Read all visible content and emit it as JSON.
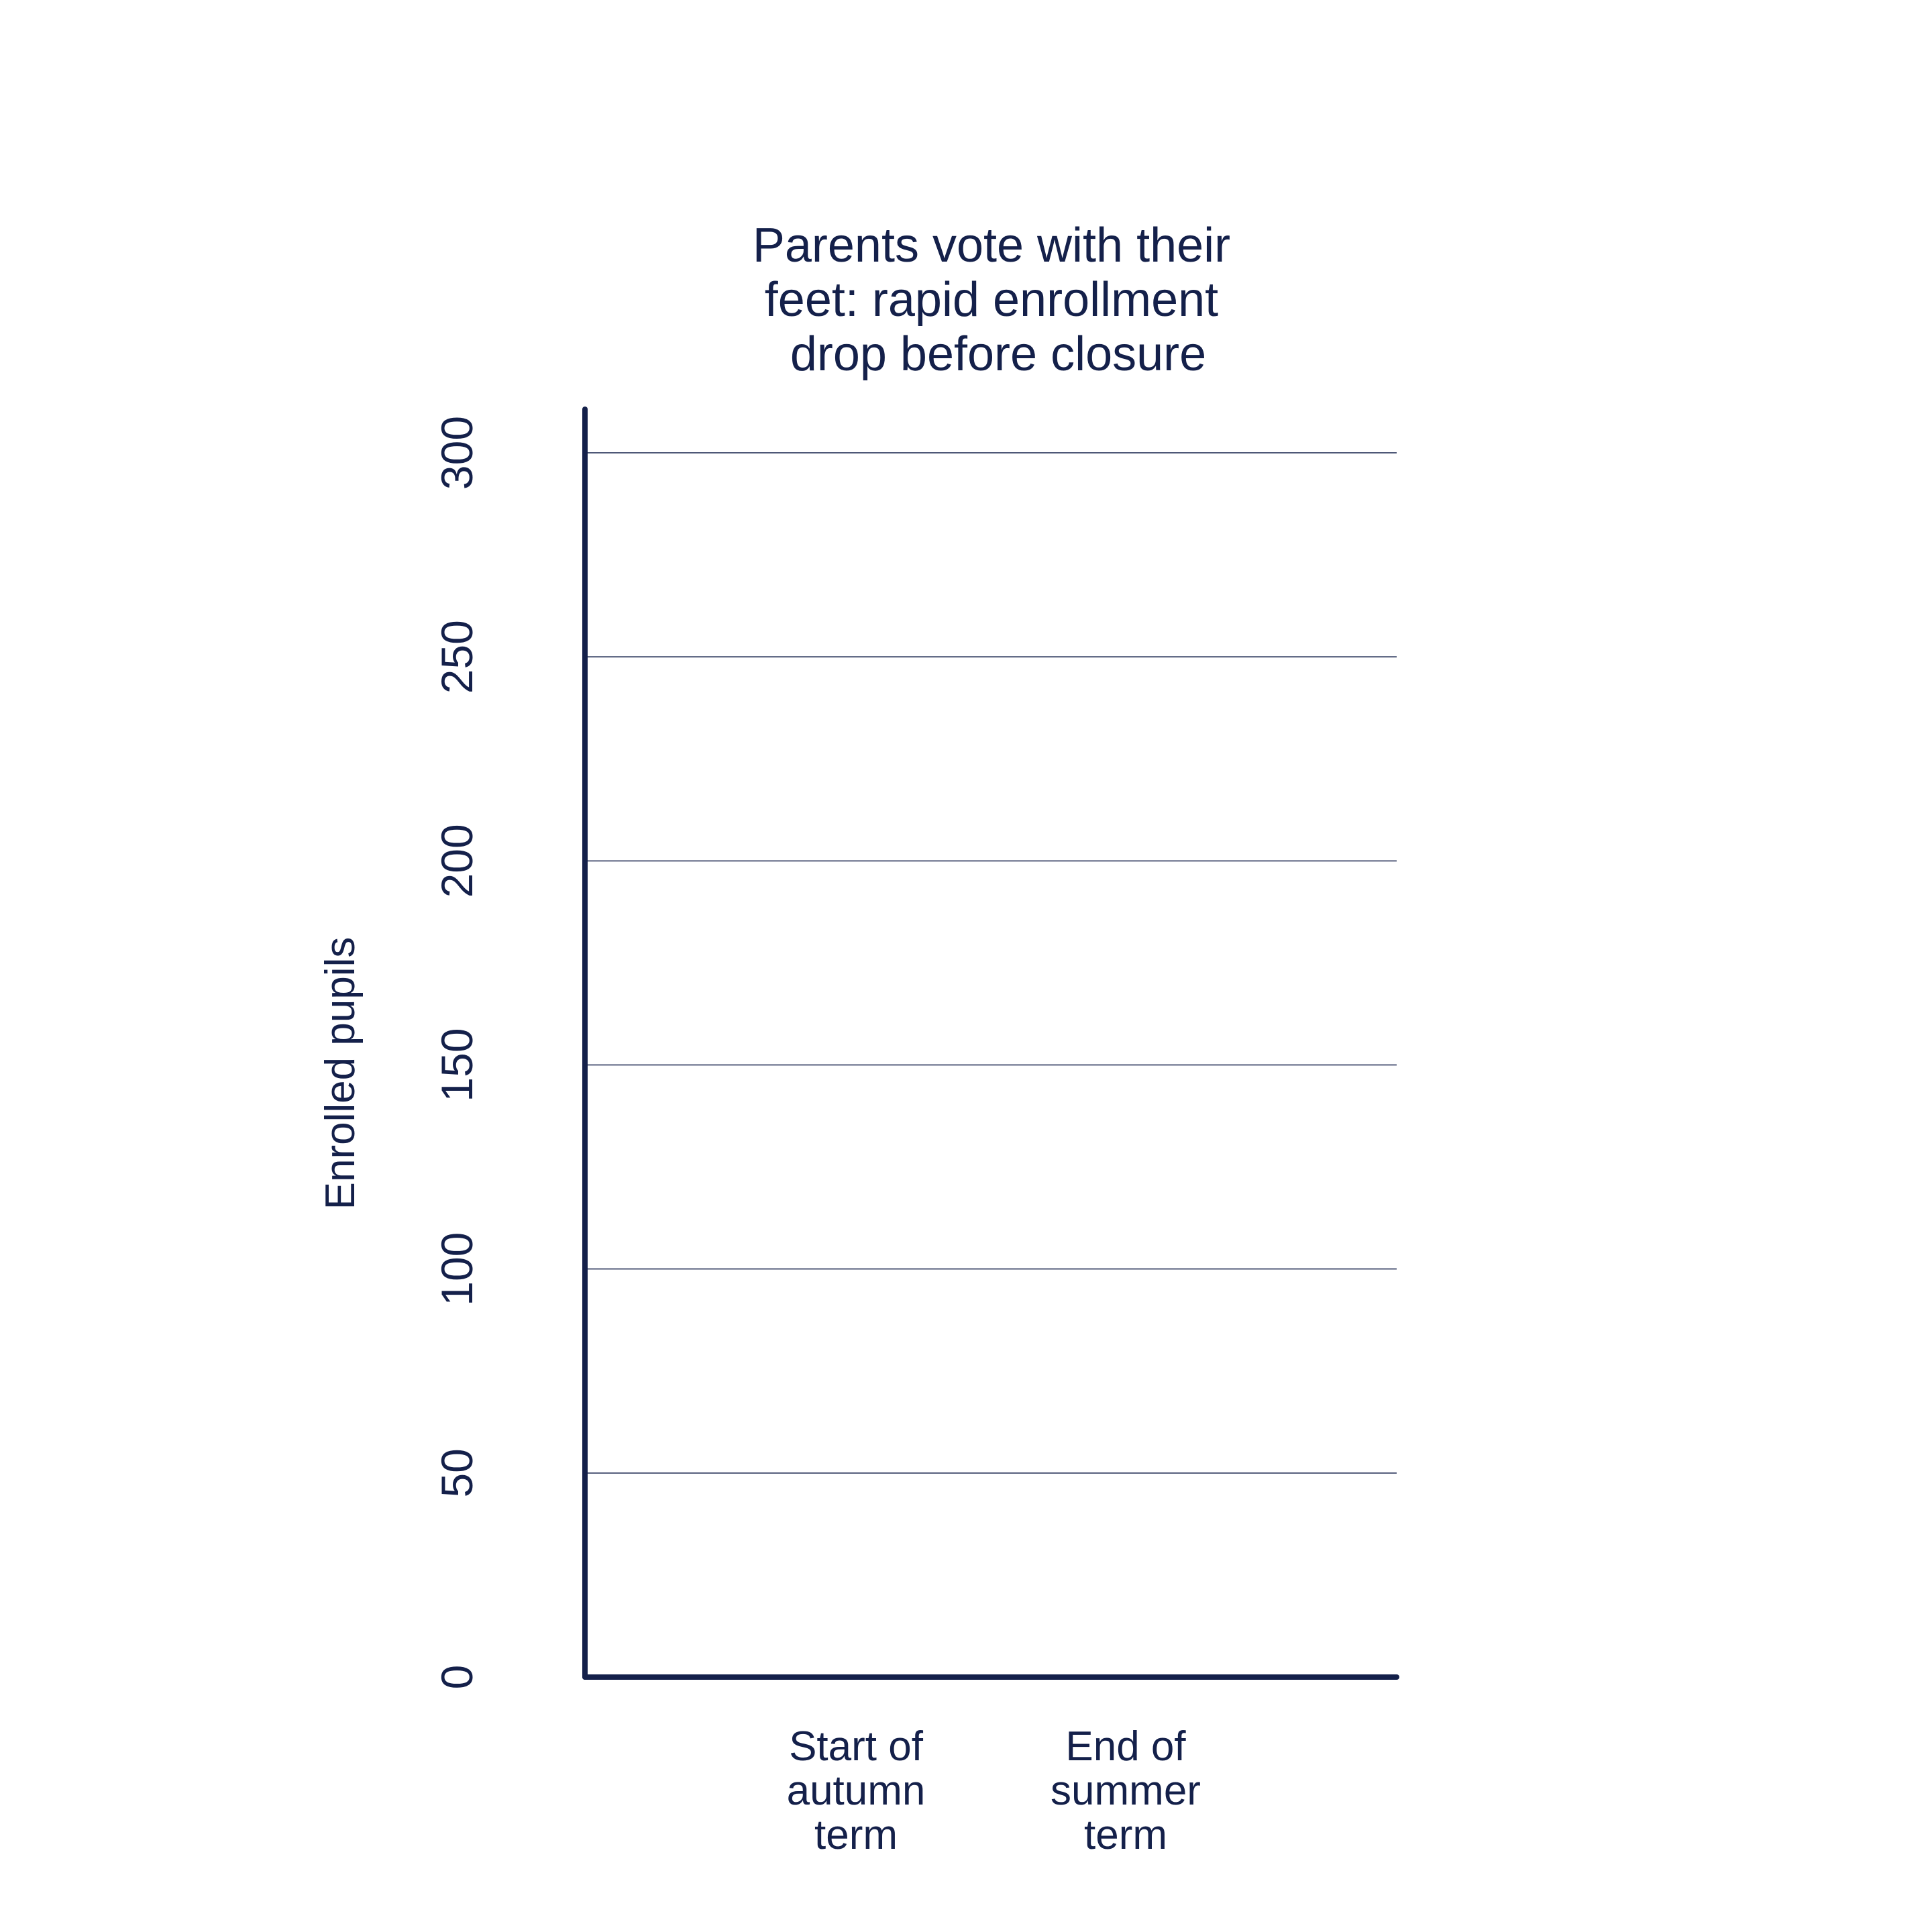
{
  "chart_data": {
    "type": "bar",
    "title": [
      "Parents vote with their",
      "feet: rapid enrollment",
      "drop before closure"
    ],
    "xlabel": "",
    "ylabel": "Enrolled pupils",
    "categories": [
      [
        "Start of",
        "autumn",
        "term"
      ],
      [
        "End of",
        "summer",
        "term"
      ]
    ],
    "values": [
      null,
      null
    ],
    "ylim": [
      0,
      310
    ],
    "yticks": [
      0,
      50,
      100,
      150,
      200,
      250,
      300
    ],
    "grid": true,
    "colors": {
      "axis": "#14204a",
      "grid": "#14204a",
      "text": "#14204a"
    }
  }
}
